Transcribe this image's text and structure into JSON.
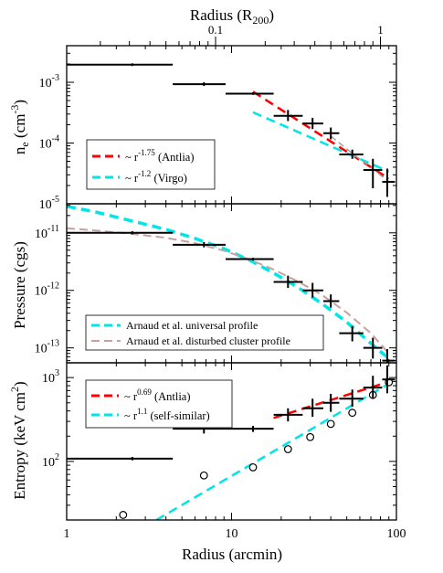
{
  "chart_data": [
    {
      "type": "scatter",
      "top_axis": {
        "label_main": "Radius (R",
        "label_sub": "200",
        "label_close": ")",
        "ticks": [
          {
            "value": 0.1,
            "label": "0.1"
          },
          {
            "value": 1,
            "label": "1"
          }
        ],
        "arcmin_per_r200": 80
      },
      "ylabel": {
        "main": "n",
        "sub": "e",
        "unit_open": " (cm",
        "unit_sup": "-3",
        "unit_close": ")"
      },
      "yscale": "log",
      "ylim": [
        1e-05,
        0.004
      ],
      "yticks": [
        {
          "value": 1e-05,
          "base": "10",
          "exp": "-5"
        },
        {
          "value": 0.0001,
          "base": "10",
          "exp": "-4"
        },
        {
          "value": 0.001,
          "base": "10",
          "exp": "-3"
        }
      ],
      "data": [
        {
          "x": 2.5,
          "x_lo": 1,
          "x_hi": 4.4,
          "y": 0.00195,
          "y_lo": 0.00185,
          "y_hi": 0.00205
        },
        {
          "x": 6.8,
          "x_lo": 4.4,
          "x_hi": 9.2,
          "y": 0.00093,
          "y_lo": 0.00087,
          "y_hi": 0.001
        },
        {
          "x": 13.5,
          "x_lo": 9.2,
          "x_hi": 18,
          "y": 0.00065,
          "y_lo": 0.00062,
          "y_hi": 0.00068
        },
        {
          "x": 22,
          "x_lo": 18,
          "x_hi": 27,
          "y": 0.00028,
          "y_lo": 0.00023,
          "y_hi": 0.00035
        },
        {
          "x": 31,
          "x_lo": 27,
          "x_hi": 36,
          "y": 0.00021,
          "y_lo": 0.00017,
          "y_hi": 0.00026
        },
        {
          "x": 40,
          "x_lo": 36,
          "x_hi": 45,
          "y": 0.000145,
          "y_lo": 0.000115,
          "y_hi": 0.00018
        },
        {
          "x": 54,
          "x_lo": 45,
          "x_hi": 63,
          "y": 6.5e-05,
          "y_lo": 5.5e-05,
          "y_hi": 7.8e-05
        },
        {
          "x": 72,
          "x_lo": 63,
          "x_hi": 82,
          "y": 3.6e-05,
          "y_lo": 1.8e-05,
          "y_hi": 5.5e-05
        },
        {
          "x": 88,
          "x_lo": 82,
          "x_hi": 98,
          "y": 2.3e-05,
          "y_lo": 1.3e-05,
          "y_hi": 3.8e-05
        }
      ],
      "lines": [
        {
          "name_pre": "~ r",
          "name_sup": "-1.75",
          "name_post": " (Antlia)",
          "color": "#ff0000",
          "x": [
            13.5,
            90
          ],
          "y": [
            0.0007,
            2.6e-05
          ]
        },
        {
          "name_pre": "~ r",
          "name_sup": "-1.2",
          "name_post": " (Virgo)",
          "color": "#00e6e6",
          "x": [
            13.5,
            90
          ],
          "y": [
            0.00032,
            3.4e-05
          ]
        }
      ],
      "dashed_gray": {
        "color": "#a0a0a0",
        "x": [
          40,
          55,
          70,
          90
        ],
        "y": [
          0.00013,
          6.5e-05,
          4e-05,
          2.3e-05
        ]
      }
    },
    {
      "type": "scatter",
      "ylabel": "Pressure (cgs)",
      "yscale": "log",
      "ylim": [
        5.5e-14,
        3.2e-11
      ],
      "yticks": [
        {
          "value": 1e-13,
          "base": "10",
          "exp": "-13"
        },
        {
          "value": 1e-12,
          "base": "10",
          "exp": "-12"
        },
        {
          "value": 1e-11,
          "base": "10",
          "exp": "-11"
        }
      ],
      "data": [
        {
          "x": 2.5,
          "x_lo": 1,
          "x_hi": 4.4,
          "y": 1e-11,
          "y_lo": 9.4e-12,
          "y_hi": 1.07e-11
        },
        {
          "x": 6.8,
          "x_lo": 4.4,
          "x_hi": 9.2,
          "y": 6.2e-12,
          "y_lo": 5.6e-12,
          "y_hi": 6.9e-12
        },
        {
          "x": 13.5,
          "x_lo": 9.2,
          "x_hi": 18,
          "y": 3.5e-12,
          "y_lo": 3.3e-12,
          "y_hi": 3.7e-12
        },
        {
          "x": 22,
          "x_lo": 18,
          "x_hi": 27,
          "y": 1.4e-12,
          "y_lo": 1.1e-12,
          "y_hi": 1.8e-12
        },
        {
          "x": 31,
          "x_lo": 27,
          "x_hi": 36,
          "y": 1e-12,
          "y_lo": 7.5e-13,
          "y_hi": 1.35e-12
        },
        {
          "x": 40,
          "x_lo": 36,
          "x_hi": 45,
          "y": 6.5e-13,
          "y_lo": 5e-13,
          "y_hi": 8.5e-13
        },
        {
          "x": 54,
          "x_lo": 45,
          "x_hi": 63,
          "y": 1.8e-13,
          "y_lo": 1.3e-13,
          "y_hi": 2.4e-13
        },
        {
          "x": 72,
          "x_lo": 63,
          "x_hi": 82,
          "y": 1e-13,
          "y_lo": 6.5e-14,
          "y_hi": 1.5e-13
        },
        {
          "x": 88,
          "x_lo": 82,
          "x_hi": 98,
          "y": 6e-14,
          "y_lo": 5.5e-14,
          "y_hi": 9.5e-14
        }
      ],
      "lines": [
        {
          "name": "Arnaud et al. universal profile",
          "color": "#00e6e6",
          "x": [
            1,
            1.5,
            2.5,
            4,
            6,
            9,
            13,
            18,
            25,
            35,
            50,
            70,
            90
          ],
          "y": [
            2.9e-11,
            2.3e-11,
            1.6e-11,
            1.15e-11,
            8e-12,
            5.3e-12,
            3.3e-12,
            2e-12,
            1.15e-12,
            6e-13,
            2.8e-13,
            1.2e-13,
            6.5e-14
          ]
        },
        {
          "name": "Arnaud et al. disturbed cluster profile",
          "color": "#c8a0a0",
          "x": [
            1,
            1.5,
            2.5,
            4,
            6,
            9,
            13,
            18,
            25,
            35,
            50,
            70,
            90
          ],
          "y": [
            1.2e-11,
            1.1e-11,
            9.6e-12,
            8.2e-12,
            6.6e-12,
            4.9e-12,
            3.4e-12,
            2.3e-12,
            1.45e-12,
            8.5e-13,
            4.1e-13,
            1.8e-13,
            8e-14
          ]
        }
      ]
    },
    {
      "type": "scatter",
      "ylabel": {
        "main": "Entropy (keV cm",
        "sup": "2",
        "close": ")"
      },
      "xlabel": "Radius (arcmin)",
      "xscale": "log",
      "xlim": [
        1,
        100
      ],
      "xticks": [
        {
          "value": 1,
          "label": "1"
        },
        {
          "value": 10,
          "label": "10"
        },
        {
          "value": 100,
          "label": "100"
        }
      ],
      "yscale": "log",
      "ylim": [
        20,
        1500
      ],
      "yticks": [
        {
          "value": 100,
          "base": "10",
          "exp": "2"
        },
        {
          "value": 1000,
          "base": "10",
          "exp": "3"
        }
      ],
      "data": [
        {
          "x": 2.5,
          "x_lo": 1,
          "x_hi": 4.4,
          "y": 108,
          "y_lo": 103,
          "y_hi": 113
        },
        {
          "x": 6.8,
          "x_lo": 4.4,
          "x_hi": 9.2,
          "y": 245,
          "y_lo": 215,
          "y_hi": 280
        },
        {
          "x": 13.5,
          "x_lo": 9.2,
          "x_hi": 18,
          "y": 245,
          "y_lo": 225,
          "y_hi": 265
        },
        {
          "x": 22,
          "x_lo": 18,
          "x_hi": 27,
          "y": 360,
          "y_lo": 300,
          "y_hi": 430
        },
        {
          "x": 31,
          "x_lo": 27,
          "x_hi": 36,
          "y": 430,
          "y_lo": 340,
          "y_hi": 560
        },
        {
          "x": 40,
          "x_lo": 36,
          "x_hi": 45,
          "y": 500,
          "y_lo": 390,
          "y_hi": 640
        },
        {
          "x": 54,
          "x_lo": 45,
          "x_hi": 63,
          "y": 560,
          "y_lo": 450,
          "y_hi": 720
        },
        {
          "x": 72,
          "x_lo": 63,
          "x_hi": 82,
          "y": 760,
          "y_lo": 560,
          "y_hi": 1050
        },
        {
          "x": 88,
          "x_lo": 82,
          "x_hi": 98,
          "y": 950,
          "y_lo": 650,
          "y_hi": 1400
        }
      ],
      "open_circles": {
        "x": [
          2.2,
          6.8,
          13.5,
          22,
          30,
          40,
          54,
          72,
          90
        ],
        "y": [
          23,
          68,
          85,
          140,
          195,
          280,
          380,
          620,
          880
        ]
      },
      "lines": [
        {
          "name_pre": "~ r",
          "name_sup": "0.69",
          "name_post": " (Antlia)",
          "color": "#ff0000",
          "x": [
            18,
            90
          ],
          "y": [
            330,
            890
          ]
        },
        {
          "name_pre": "~ r",
          "name_sup": "1.1",
          "name_post": " (self-similar)",
          "color": "#00e6e6",
          "x": [
            3.5,
            95
          ],
          "y": [
            20,
            900
          ]
        }
      ]
    }
  ]
}
